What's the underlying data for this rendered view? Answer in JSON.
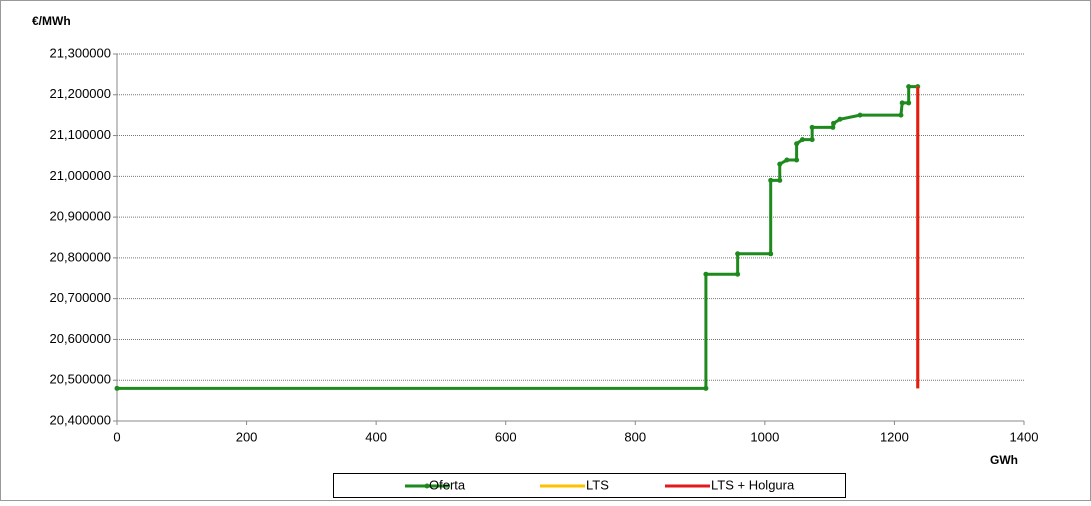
{
  "chart_data": {
    "type": "line",
    "y_label": "€/MWh",
    "x_label": "GWh",
    "xlim": [
      0,
      1400
    ],
    "xticks": [
      0,
      200,
      400,
      600,
      800,
      1000,
      1200,
      1400
    ],
    "ylim": [
      20.4,
      21.3
    ],
    "yticks": [
      {
        "value": 20.4,
        "label": "20,400000"
      },
      {
        "value": 20.5,
        "label": "20,500000"
      },
      {
        "value": 20.6,
        "label": "20,600000"
      },
      {
        "value": 20.7,
        "label": "20,700000"
      },
      {
        "value": 20.8,
        "label": "20,800000"
      },
      {
        "value": 20.9,
        "label": "20,900000"
      },
      {
        "value": 21.0,
        "label": "21,000000"
      },
      {
        "value": 21.1,
        "label": "21,100000"
      },
      {
        "value": 21.2,
        "label": "21,200000"
      },
      {
        "value": 21.3,
        "label": "21,300000"
      }
    ],
    "grid": true,
    "legend": "bottom",
    "series": [
      {
        "name": "Oferta",
        "color": "#1e8a1e",
        "markers": true,
        "x": [
          0,
          909,
          909,
          958,
          958,
          1009,
          1009,
          1023,
          1023,
          1034,
          1049,
          1049,
          1058,
          1073,
          1073,
          1105,
          1106,
          1116,
          1147,
          1210,
          1212,
          1222,
          1222,
          1236
        ],
        "values": [
          20.48,
          20.48,
          20.76,
          20.76,
          20.81,
          20.81,
          20.99,
          20.99,
          21.03,
          21.04,
          21.04,
          21.08,
          21.09,
          21.09,
          21.12,
          21.12,
          21.13,
          21.14,
          21.15,
          21.15,
          21.18,
          21.18,
          21.22,
          21.22
        ]
      },
      {
        "name": "LTS",
        "color": "#ffc000",
        "markers": false,
        "x": [
          1236,
          1236
        ],
        "values": [
          20.48,
          21.22
        ]
      },
      {
        "name": "LTS + Holgura",
        "color": "#e31a1c",
        "markers": false,
        "x": [
          1236,
          1236
        ],
        "values": [
          20.48,
          21.22
        ]
      }
    ]
  }
}
